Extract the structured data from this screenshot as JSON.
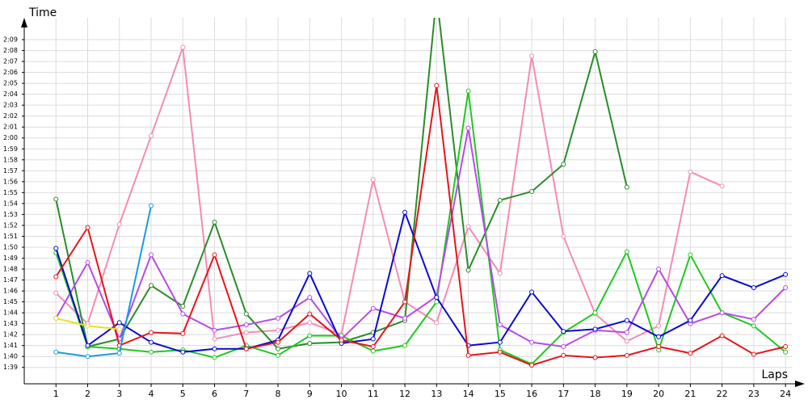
{
  "chart_data": {
    "type": "line",
    "y_label": "Time",
    "x_label": "Laps",
    "x": [
      1,
      2,
      3,
      4,
      5,
      6,
      7,
      8,
      9,
      10,
      11,
      12,
      13,
      14,
      15,
      16,
      17,
      18,
      19,
      20,
      21,
      22,
      23,
      24
    ],
    "xlim": [
      0,
      24.2
    ],
    "xticks": [
      1,
      2,
      3,
      4,
      5,
      6,
      7,
      8,
      9,
      10,
      11,
      12,
      13,
      14,
      15,
      16,
      17,
      18,
      19,
      20,
      21,
      22,
      23,
      24
    ],
    "ylim": [
      97.5,
      131
    ],
    "yticks": [
      {
        "value": 99,
        "label": "1:39"
      },
      {
        "value": 100,
        "label": "1:40"
      },
      {
        "value": 101,
        "label": "1:41"
      },
      {
        "value": 102,
        "label": "1:42"
      },
      {
        "value": 103,
        "label": "1:43"
      },
      {
        "value": 104,
        "label": "1:44"
      },
      {
        "value": 105,
        "label": "1:45"
      },
      {
        "value": 106,
        "label": "1:46"
      },
      {
        "value": 107,
        "label": "1:47"
      },
      {
        "value": 108,
        "label": "1:48"
      },
      {
        "value": 109,
        "label": "1:49"
      },
      {
        "value": 110,
        "label": "1:50"
      },
      {
        "value": 111,
        "label": "1:51"
      },
      {
        "value": 112,
        "label": "1:52"
      },
      {
        "value": 113,
        "label": "1:53"
      },
      {
        "value": 114,
        "label": "1:54"
      },
      {
        "value": 115,
        "label": "1:55"
      },
      {
        "value": 116,
        "label": "1:56"
      },
      {
        "value": 117,
        "label": "1:57"
      },
      {
        "value": 118,
        "label": "1:58"
      },
      {
        "value": 119,
        "label": "1:59"
      },
      {
        "value": 120,
        "label": "2:00"
      },
      {
        "value": 121,
        "label": "2:01"
      },
      {
        "value": 122,
        "label": "2:02"
      },
      {
        "value": 123,
        "label": "2:03"
      },
      {
        "value": 124,
        "label": "2:04"
      },
      {
        "value": 125,
        "label": "2:05"
      },
      {
        "value": 126,
        "label": "2:06"
      },
      {
        "value": 127,
        "label": "2:07"
      },
      {
        "value": 128,
        "label": "2:08"
      },
      {
        "value": 129,
        "label": "2:09"
      }
    ],
    "grid": true,
    "series": [
      {
        "color": "#f48cb4",
        "values": [
          105.8,
          103.0,
          112.1,
          120.2,
          128.3,
          101.6,
          102.2,
          102.4,
          103.1,
          102.0,
          116.2,
          105.0,
          103.1,
          111.9,
          107.6,
          127.5,
          111.0,
          103.9,
          101.4,
          102.8,
          116.9,
          115.6,
          null,
          null
        ]
      },
      {
        "color": "#2a8c2a",
        "values": [
          114.4,
          100.9,
          101.6,
          106.5,
          104.6,
          112.3,
          103.9,
          100.7,
          101.2,
          101.3,
          102.2,
          103.3,
          133.0,
          107.9,
          114.3,
          115.1,
          117.6,
          127.9,
          115.5,
          null,
          null,
          null,
          null,
          null
        ]
      },
      {
        "color": "#20c820",
        "values": [
          109.5,
          100.9,
          100.7,
          100.4,
          100.6,
          99.9,
          101.0,
          100.1,
          101.9,
          101.9,
          100.5,
          101.0,
          105.0,
          124.3,
          100.6,
          99.3,
          102.2,
          104.0,
          109.6,
          100.6,
          109.3,
          104.0,
          102.8,
          100.4
        ]
      },
      {
        "color": "#b84ae8",
        "values": [
          103.5,
          108.6,
          101.6,
          109.3,
          103.9,
          102.4,
          102.9,
          103.5,
          105.4,
          101.6,
          104.4,
          103.5,
          105.5,
          120.9,
          102.9,
          101.3,
          100.9,
          102.4,
          102.2,
          108.0,
          103.0,
          104.0,
          103.4,
          106.3
        ]
      },
      {
        "color": "#0a0ad0",
        "values": [
          109.9,
          101.0,
          103.1,
          101.3,
          100.4,
          100.7,
          100.7,
          101.5,
          107.6,
          101.2,
          101.6,
          113.2,
          105.4,
          101.0,
          101.3,
          105.9,
          102.3,
          102.5,
          103.3,
          101.8,
          103.3,
          107.4,
          106.3,
          107.5
        ]
      },
      {
        "color": "#e8141b",
        "values": [
          107.3,
          111.8,
          101.0,
          102.2,
          102.1,
          109.3,
          100.7,
          101.3,
          103.9,
          101.5,
          100.9,
          105.0,
          124.8,
          100.1,
          100.4,
          99.2,
          100.1,
          99.9,
          100.1,
          100.9,
          100.3,
          101.9,
          100.2,
          100.9
        ]
      },
      {
        "color": "#1a9ae0",
        "values": [
          100.4,
          100.0,
          100.3,
          113.8,
          null,
          null,
          null,
          null,
          null,
          null,
          null,
          null,
          null,
          null,
          null,
          null,
          null,
          null,
          null,
          null,
          null,
          null,
          null,
          null
        ]
      },
      {
        "color": "#e6e020",
        "values": [
          103.5,
          102.8,
          102.5,
          null,
          null,
          null,
          null,
          null,
          null,
          null,
          null,
          null,
          null,
          null,
          null,
          null,
          null,
          null,
          null,
          null,
          null,
          null,
          null,
          null
        ]
      }
    ]
  }
}
